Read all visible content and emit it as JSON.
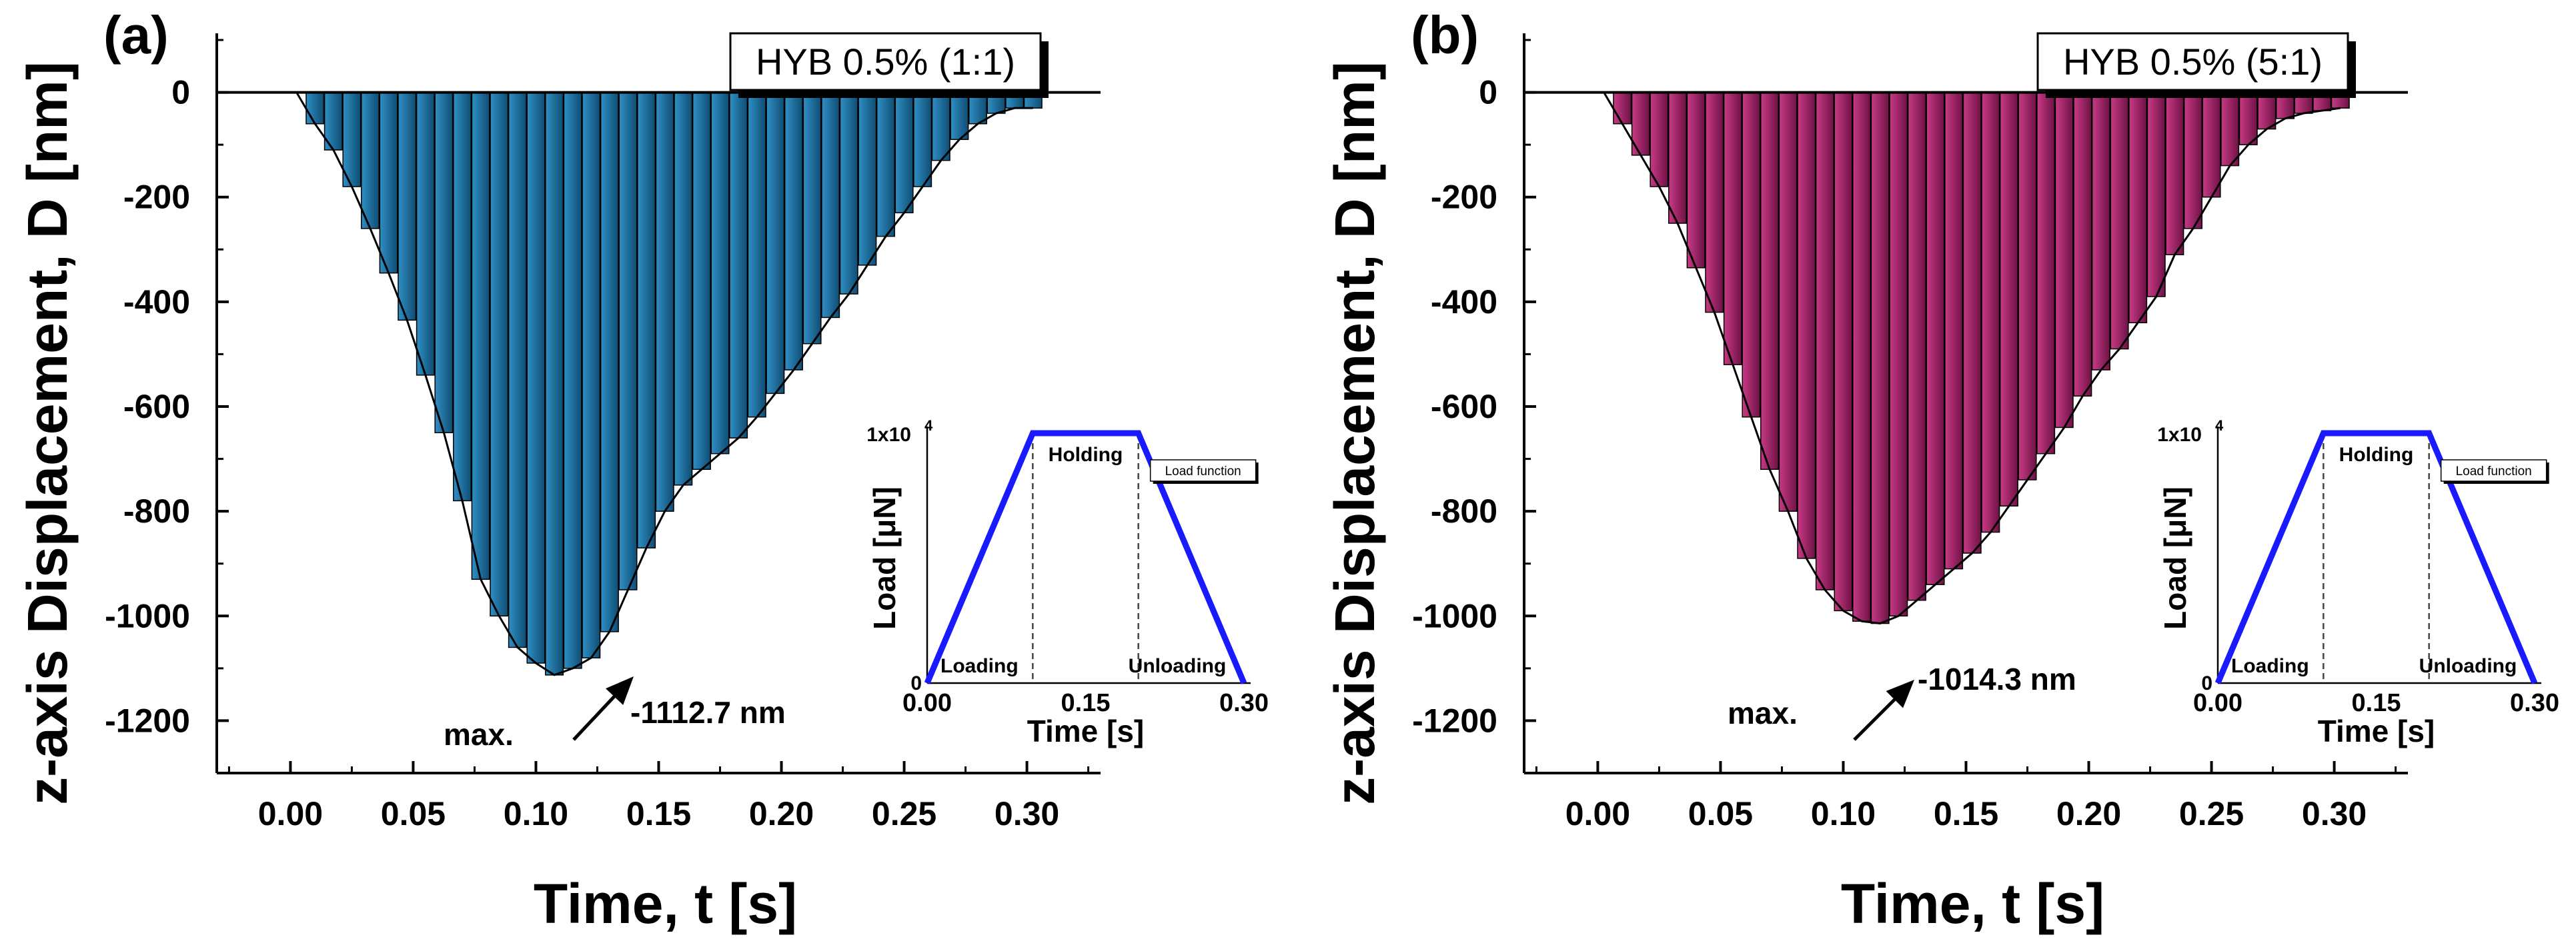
{
  "chart_data": [
    {
      "type": "bar",
      "panel_label": "(a)",
      "legend": "HYB 0.5% (1:1)",
      "xlabel": "Time, t [s]",
      "ylabel": "z-axis Displacement, D [nm]",
      "xlim": [
        -0.03,
        0.33
      ],
      "ylim": [
        -1300,
        100
      ],
      "xticks": [
        0.0,
        0.05,
        0.1,
        0.15,
        0.2,
        0.25,
        0.3
      ],
      "xtick_labels": [
        "0.00",
        "0.05",
        "0.10",
        "0.15",
        "0.20",
        "0.25",
        "0.30"
      ],
      "yticks": [
        0,
        -200,
        -400,
        -600,
        -800,
        -1000,
        -1200
      ],
      "ytick_labels": [
        "0",
        "-200",
        "-400",
        "-600",
        "-800",
        "-1000",
        "-1200"
      ],
      "bar_color": "#1f6f9e",
      "x": [
        0.01,
        0.0175,
        0.025,
        0.0325,
        0.04,
        0.0475,
        0.055,
        0.0625,
        0.07,
        0.0775,
        0.085,
        0.0925,
        0.1,
        0.1075,
        0.115,
        0.1225,
        0.13,
        0.1375,
        0.145,
        0.1525,
        0.16,
        0.1675,
        0.175,
        0.1825,
        0.19,
        0.1975,
        0.205,
        0.2125,
        0.22,
        0.2275,
        0.235,
        0.2425,
        0.25,
        0.2575,
        0.265,
        0.2725,
        0.28,
        0.2875,
        0.295,
        0.3025
      ],
      "values": [
        -60,
        -110,
        -180,
        -260,
        -345,
        -435,
        -540,
        -650,
        -780,
        -930,
        -1000,
        -1060,
        -1090,
        -1112.7,
        -1100,
        -1080,
        -1030,
        -950,
        -870,
        -800,
        -750,
        -720,
        -690,
        -660,
        -620,
        -575,
        -530,
        -480,
        -430,
        -385,
        -330,
        -275,
        -230,
        -180,
        -130,
        -90,
        -60,
        -40,
        -30,
        -30
      ],
      "annotation": {
        "label": "max.",
        "value_label": "-1112.7 nm",
        "x": 0.1325,
        "y": -1112.7
      },
      "inset": {
        "title": "Load function",
        "xlabel": "Time [s]",
        "ylabel": "Load [μN]",
        "xtick_labels": [
          "0.00",
          "0.15",
          "0.30"
        ],
        "ytick_top": "1x10",
        "ytick_top_exp": "4",
        "ytick_bottom": "0",
        "phase_labels": [
          "Loading",
          "Holding",
          "Unloading"
        ],
        "line_color": "#1a1aff",
        "x": [
          0.0,
          0.1,
          0.2,
          0.3
        ],
        "load": [
          0,
          10000,
          10000,
          0
        ],
        "xlim": [
          0.0,
          0.3
        ],
        "ylim": [
          0,
          10000
        ]
      }
    },
    {
      "type": "bar",
      "panel_label": "(b)",
      "legend": "HYB 0.5% (5:1)",
      "xlabel": "Time, t [s]",
      "ylabel": "z-axis Displacement, D [nm]",
      "xlim": [
        -0.03,
        0.33
      ],
      "ylim": [
        -1300,
        100
      ],
      "xticks": [
        0.0,
        0.05,
        0.1,
        0.15,
        0.2,
        0.25,
        0.3
      ],
      "xtick_labels": [
        "0.00",
        "0.05",
        "0.10",
        "0.15",
        "0.20",
        "0.25",
        "0.30"
      ],
      "yticks": [
        0,
        -200,
        -400,
        -600,
        -800,
        -1000,
        -1200
      ],
      "ytick_labels": [
        "0",
        "-200",
        "-400",
        "-600",
        "-800",
        "-1000",
        "-1200"
      ],
      "bar_color": "#b0266f",
      "x": [
        0.01,
        0.0175,
        0.025,
        0.0325,
        0.04,
        0.0475,
        0.055,
        0.0625,
        0.07,
        0.0775,
        0.085,
        0.0925,
        0.1,
        0.1075,
        0.115,
        0.1225,
        0.13,
        0.1375,
        0.145,
        0.1525,
        0.16,
        0.1675,
        0.175,
        0.1825,
        0.19,
        0.1975,
        0.205,
        0.2125,
        0.22,
        0.2275,
        0.235,
        0.2425,
        0.25,
        0.2575,
        0.265,
        0.2725,
        0.28,
        0.2875,
        0.295,
        0.3025
      ],
      "values": [
        -60,
        -120,
        -180,
        -250,
        -335,
        -420,
        -520,
        -620,
        -720,
        -800,
        -890,
        -950,
        -990,
        -1010,
        -1014.3,
        -1000,
        -970,
        -940,
        -910,
        -880,
        -840,
        -790,
        -740,
        -690,
        -640,
        -580,
        -530,
        -490,
        -440,
        -390,
        -310,
        -260,
        -200,
        -140,
        -100,
        -70,
        -50,
        -40,
        -35,
        -30
      ],
      "annotation": {
        "label": "max.",
        "value_label": "-1014.3 nm",
        "x": 0.13,
        "y": -1014.3
      },
      "inset": {
        "title": "Load function",
        "xlabel": "Time [s]",
        "ylabel": "Load [μN]",
        "xtick_labels": [
          "0.00",
          "0.15",
          "0.30"
        ],
        "ytick_top": "1x10",
        "ytick_top_exp": "4",
        "ytick_bottom": "0",
        "phase_labels": [
          "Loading",
          "Holding",
          "Unloading"
        ],
        "line_color": "#1a1aff",
        "x": [
          0.0,
          0.1,
          0.2,
          0.3
        ],
        "load": [
          0,
          10000,
          10000,
          0
        ],
        "xlim": [
          0.0,
          0.3
        ],
        "ylim": [
          0,
          10000
        ]
      }
    }
  ]
}
